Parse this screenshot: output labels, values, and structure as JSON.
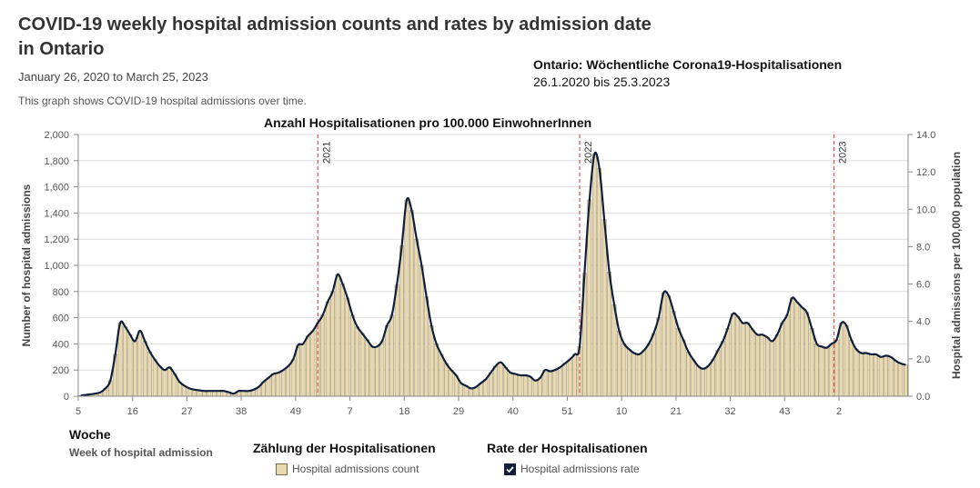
{
  "header": {
    "title": "COVID-19 weekly hospital admission counts and rates by admission date in Ontario",
    "date_range": "January 26, 2020 to March 25, 2023",
    "subtitle": "This graph shows COVID-19 hospital admissions over time."
  },
  "annotations": {
    "de_title": "Ontario: Wöchentliche Corona19-Hospitalisationen",
    "de_range": "26.1.2020 bis 25.3.2023",
    "de_rate_title": "Anzahl Hospitalisationen pro 100.000 EinwohnerInnen",
    "de_woche": "Woche",
    "de_count": "Zählung der Hospitalisationen",
    "de_rate": "Rate der Hospitalisationen"
  },
  "legend": {
    "count_label": "Hospital admissions count",
    "rate_label": "Hospital admissions rate"
  },
  "colors": {
    "bar_fill": "#e8d9b1",
    "bar_stroke": "#7a6a45",
    "line": "#0f1f3a",
    "year_line": "#d9534f",
    "grid": "#dddddd",
    "axis": "#888888"
  },
  "chart_data": {
    "type": "bar",
    "xlabel": "Week of hospital admission",
    "ylabel": "Number of hospital admissions",
    "y2label": "Hospital admissions per 100,000 population",
    "ylim": [
      0,
      2000
    ],
    "y2lim": [
      0,
      14
    ],
    "yticks": [
      "0",
      "200",
      "400",
      "600",
      "800",
      "1,000",
      "1,200",
      "1,400",
      "1,600",
      "1,800",
      "2,000"
    ],
    "y2ticks": [
      "0.0",
      "2.0",
      "4.0",
      "6.0",
      "8.0",
      "10.0",
      "12.0",
      "14.0"
    ],
    "x_ticks": [
      {
        "label": "5",
        "index": 0
      },
      {
        "label": "16",
        "index": 11
      },
      {
        "label": "27",
        "index": 22
      },
      {
        "label": "38",
        "index": 33
      },
      {
        "label": "49",
        "index": 44
      },
      {
        "label": "7",
        "index": 55
      },
      {
        "label": "18",
        "index": 66
      },
      {
        "label": "29",
        "index": 77
      },
      {
        "label": "40",
        "index": 88
      },
      {
        "label": "51",
        "index": 99
      },
      {
        "label": "10",
        "index": 110
      },
      {
        "label": "21",
        "index": 121
      },
      {
        "label": "32",
        "index": 132
      },
      {
        "label": "43",
        "index": 143
      },
      {
        "label": "2",
        "index": 154
      }
    ],
    "year_markers": [
      {
        "label": "2021",
        "index": 48.5
      },
      {
        "label": "2022",
        "index": 101.5
      },
      {
        "label": "2023",
        "index": 153
      }
    ],
    "counts": [
      5,
      10,
      15,
      20,
      30,
      60,
      120,
      320,
      560,
      530,
      470,
      420,
      500,
      420,
      340,
      280,
      230,
      200,
      220,
      170,
      110,
      80,
      60,
      50,
      45,
      40,
      40,
      40,
      40,
      40,
      30,
      20,
      40,
      40,
      40,
      50,
      70,
      110,
      140,
      170,
      180,
      200,
      230,
      280,
      390,
      400,
      460,
      500,
      560,
      620,
      720,
      800,
      930,
      860,
      750,
      620,
      530,
      480,
      430,
      380,
      380,
      420,
      540,
      620,
      850,
      1150,
      1500,
      1420,
      1200,
      1000,
      760,
      540,
      400,
      320,
      250,
      200,
      160,
      100,
      80,
      60,
      70,
      100,
      130,
      180,
      230,
      260,
      220,
      180,
      170,
      160,
      160,
      150,
      120,
      140,
      200,
      190,
      200,
      220,
      250,
      280,
      320,
      380,
      940,
      1500,
      1850,
      1740,
      1350,
      950,
      700,
      500,
      400,
      360,
      330,
      320,
      350,
      400,
      480,
      600,
      790,
      770,
      650,
      520,
      430,
      340,
      280,
      230,
      210,
      230,
      280,
      350,
      420,
      520,
      630,
      610,
      560,
      560,
      510,
      470,
      470,
      450,
      420,
      470,
      560,
      620,
      750,
      720,
      680,
      640,
      520,
      400,
      380,
      370,
      400,
      430,
      560,
      540,
      430,
      360,
      330,
      330,
      320,
      320,
      300,
      310,
      300,
      270,
      250,
      240
    ]
  }
}
